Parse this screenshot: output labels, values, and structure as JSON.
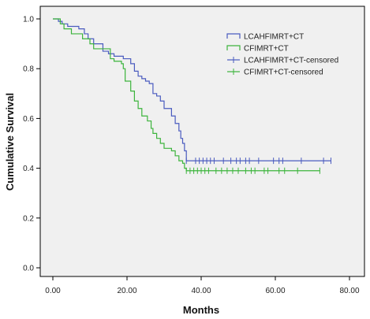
{
  "chart_data": {
    "type": "line",
    "subtype": "kaplan-meier",
    "xlabel": "Months",
    "ylabel": "Cumulative Survival",
    "xlim": [
      0,
      80
    ],
    "ylim": [
      0,
      1.0
    ],
    "xticks": [
      "0.00",
      "20.00",
      "40.00",
      "60.00",
      "80.00"
    ],
    "xtick_values": [
      0,
      20,
      40,
      60,
      80
    ],
    "yticks": [
      "0.0",
      "0.2",
      "0.4",
      "0.6",
      "0.8",
      "1.0"
    ],
    "ytick_values": [
      0,
      0.2,
      0.4,
      0.6,
      0.8,
      1.0
    ],
    "grid": false,
    "legend_position": "top-right",
    "legend": [
      "LCAHFIMRT+CT",
      "CFIMRT+CT",
      "LCAHFIMRT+CT-censored",
      "CFIMRT+CT-censored"
    ],
    "colors": {
      "LCAHFIMRT+CT": "#4a5bbf",
      "CFIMRT+CT": "#3cb43c",
      "plot_background": "#f0f0f0"
    },
    "series": [
      {
        "name": "LCAHFIMRT+CT",
        "steps": [
          [
            0,
            1.0
          ],
          [
            1.5,
            0.99
          ],
          [
            2.5,
            0.98
          ],
          [
            4,
            0.97
          ],
          [
            7,
            0.96
          ],
          [
            8.5,
            0.94
          ],
          [
            9.5,
            0.92
          ],
          [
            11,
            0.9
          ],
          [
            13.5,
            0.87
          ],
          [
            15,
            0.86
          ],
          [
            16.5,
            0.85
          ],
          [
            19,
            0.84
          ],
          [
            21,
            0.82
          ],
          [
            22,
            0.79
          ],
          [
            23,
            0.77
          ],
          [
            24,
            0.76
          ],
          [
            25,
            0.75
          ],
          [
            26,
            0.74
          ],
          [
            27,
            0.7
          ],
          [
            28,
            0.69
          ],
          [
            29,
            0.67
          ],
          [
            30,
            0.64
          ],
          [
            32,
            0.61
          ],
          [
            33,
            0.58
          ],
          [
            34,
            0.55
          ],
          [
            34.5,
            0.52
          ],
          [
            35,
            0.5
          ],
          [
            35.5,
            0.47
          ],
          [
            36,
            0.43
          ],
          [
            75,
            0.43
          ]
        ],
        "censored": [
          36,
          38.5,
          39.5,
          40.5,
          41.5,
          42.5,
          43.5,
          46,
          48,
          49.5,
          50.5,
          52,
          53,
          55.5,
          59.5,
          61,
          62,
          67,
          73,
          75
        ]
      },
      {
        "name": "CFIMRT+CT",
        "steps": [
          [
            0,
            1.0
          ],
          [
            2,
            0.98
          ],
          [
            3,
            0.96
          ],
          [
            5,
            0.94
          ],
          [
            8,
            0.92
          ],
          [
            10,
            0.9
          ],
          [
            11,
            0.88
          ],
          [
            15.5,
            0.84
          ],
          [
            16.5,
            0.83
          ],
          [
            18.5,
            0.82
          ],
          [
            19,
            0.8
          ],
          [
            19.5,
            0.75
          ],
          [
            21,
            0.71
          ],
          [
            22,
            0.67
          ],
          [
            23,
            0.64
          ],
          [
            24,
            0.61
          ],
          [
            25.5,
            0.59
          ],
          [
            26.5,
            0.56
          ],
          [
            27,
            0.54
          ],
          [
            28,
            0.52
          ],
          [
            29,
            0.5
          ],
          [
            30,
            0.48
          ],
          [
            32,
            0.47
          ],
          [
            33,
            0.45
          ],
          [
            34,
            0.43
          ],
          [
            35,
            0.42
          ],
          [
            35.5,
            0.4
          ],
          [
            36,
            0.39
          ],
          [
            72,
            0.39
          ]
        ],
        "censored": [
          36,
          37,
          38,
          39,
          40,
          41,
          42,
          44,
          45.5,
          47,
          48.5,
          50,
          52,
          53.5,
          54.5,
          57,
          58,
          61,
          62.5,
          66,
          72
        ]
      }
    ]
  }
}
